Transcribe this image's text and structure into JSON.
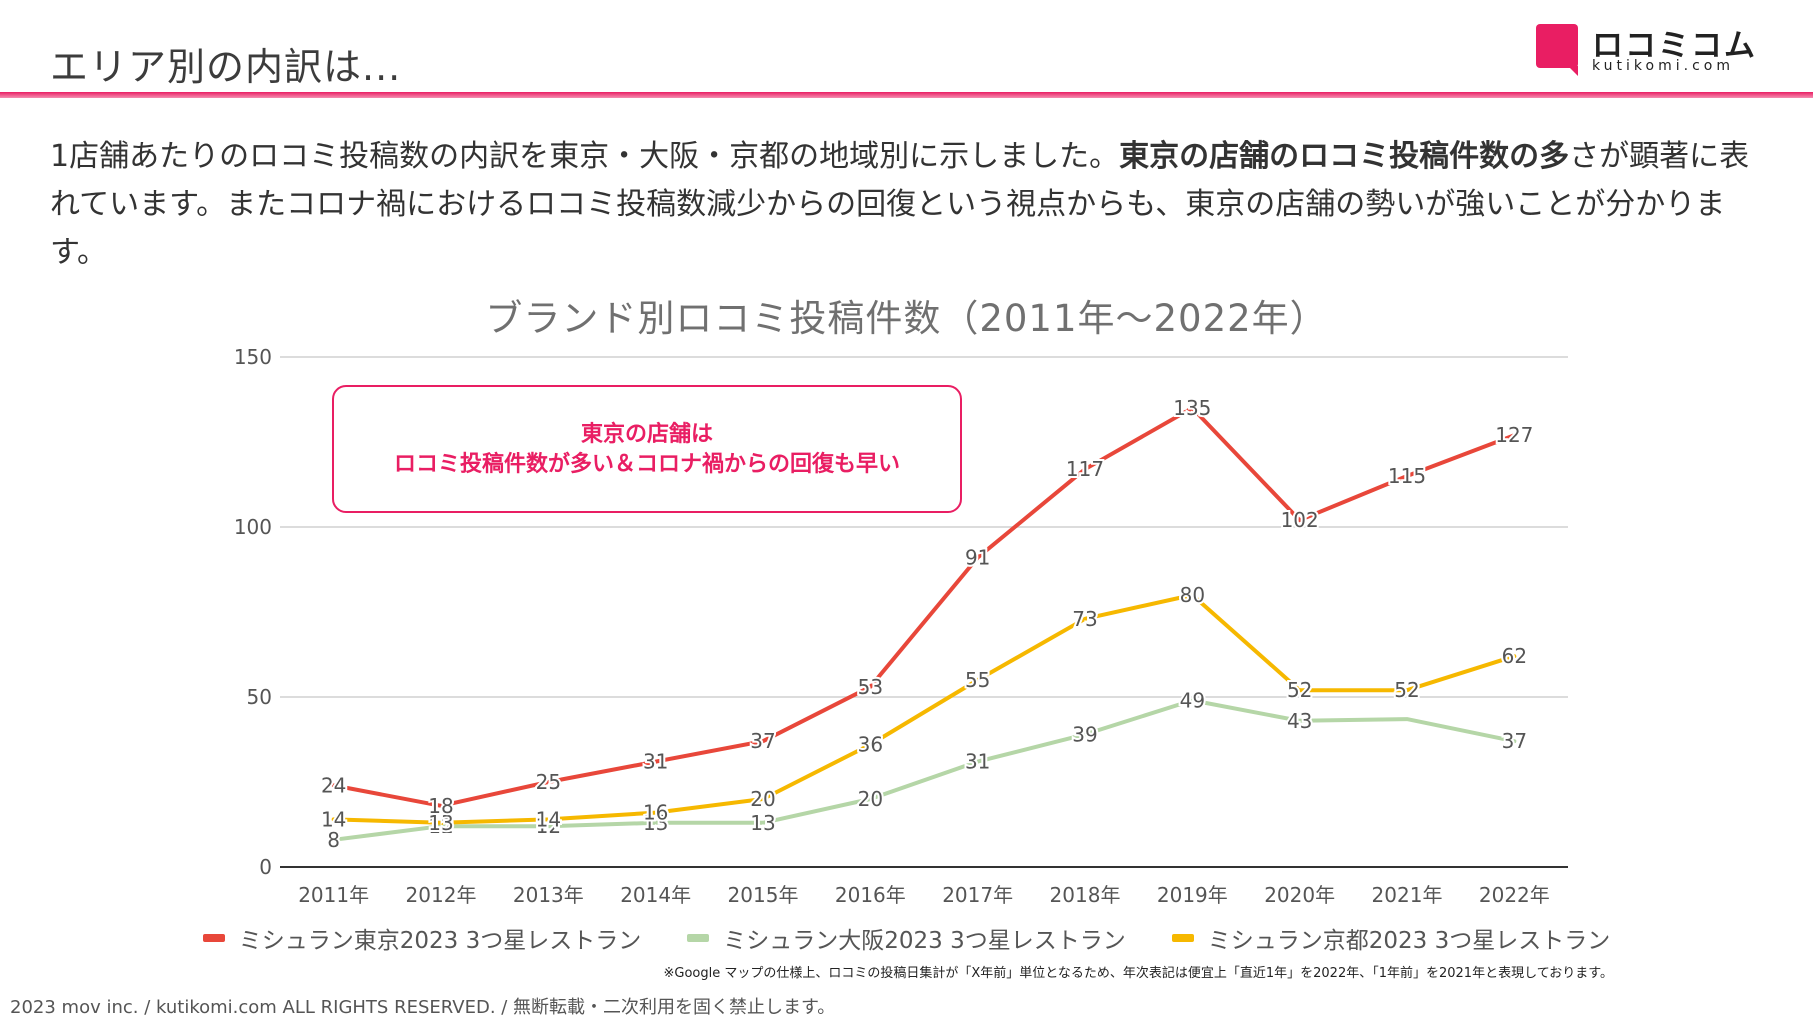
{
  "header": {
    "title": "エリア別の内訳は...",
    "logo_name": "ロコミコム",
    "logo_domain": "kutikomi.com"
  },
  "intro": {
    "part1": "1店舗あたりのロコミ投稿数の内訳を東京・大阪・京都の地域別に示しました。",
    "emphasis": "東京の店舗のロコミ投稿件数の多",
    "part2": "さが顕著に表れています。またコロナ禍におけるロコミ投稿数減少からの回復という視点からも、東京の店舗の勢いが強いことが分かります。"
  },
  "callout": {
    "line1": "東京の店舗は",
    "line2": "ロコミ投稿件数が多い＆コロナ禍からの回復も早い"
  },
  "note": "※Google マップの仕様上、ロコミの投稿日集計が「X年前」単位となるため、年次表記は便宜上「直近1年」を2022年、「1年前」を2021年と表現しております。",
  "footer": "2023 mov inc. / kutikomi.com ALL RIGHTS RESERVED. / 無断転載・二次利用を固く禁止します。",
  "chart_data": {
    "type": "line",
    "title": "ブランド別ロコミ投稿件数（2011年〜2022年）",
    "xlabel": "",
    "ylabel": "",
    "ylim": [
      0,
      150
    ],
    "yticks": [
      0,
      50,
      100,
      150
    ],
    "grid": true,
    "legend_position": "bottom",
    "categories": [
      "2011年",
      "2012年",
      "2013年",
      "2014年",
      "2015年",
      "2016年",
      "2017年",
      "2018年",
      "2019年",
      "2020年",
      "2021年",
      "2022年"
    ],
    "series": [
      {
        "name": "ミシュラン東京2023 3つ星レストラン",
        "color": "#e8473a",
        "values": [
          24,
          18,
          25,
          31,
          37,
          53,
          91,
          117,
          135,
          102,
          115,
          127
        ],
        "labels": [
          "24",
          "18",
          "25",
          "31",
          "37",
          "53",
          "91",
          "117",
          "135",
          "102",
          "115",
          "127"
        ]
      },
      {
        "name": "ミシュラン大阪2023 3つ星レストラン",
        "color": "#b5d6a7",
        "values": [
          8,
          12,
          12,
          13,
          13,
          20,
          31,
          39,
          49,
          43,
          43.5,
          37
        ],
        "labels": [
          "8",
          "12",
          "12",
          "13",
          "13",
          "20",
          "31",
          "39",
          "49",
          "43",
          "",
          "37"
        ]
      },
      {
        "name": "ミシュラン京都2023 3つ星レストラン",
        "color": "#f6b800",
        "values": [
          14,
          13,
          14,
          16,
          20,
          36,
          55,
          73,
          80,
          52,
          52,
          62
        ],
        "labels": [
          "14",
          "13",
          "14",
          "16",
          "20",
          "36",
          "55",
          "73",
          "80",
          "52",
          "52",
          "62"
        ]
      }
    ]
  }
}
